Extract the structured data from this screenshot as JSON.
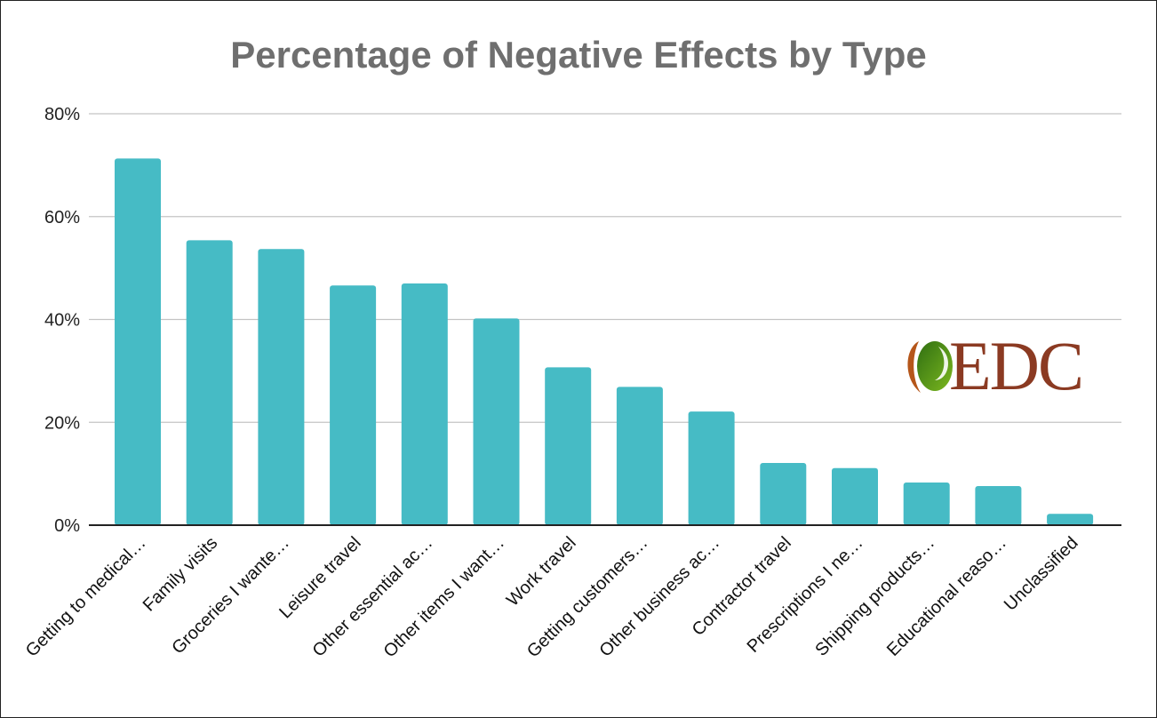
{
  "chart_data": {
    "type": "bar",
    "title": "Percentage of Negative Effects by Type",
    "xlabel": "",
    "ylabel": "",
    "ylim": [
      0,
      80
    ],
    "yticks": [
      "0%",
      "20%",
      "40%",
      "60%",
      "80%"
    ],
    "ytick_values": [
      0,
      20,
      40,
      60,
      80
    ],
    "grid": true,
    "legend": "none",
    "bar_color": "#46bbc5",
    "categories": [
      "Getting to medical…",
      "Family visits",
      "Groceries I wante…",
      "Leisure travel",
      "Other essential ac…",
      "Other items I want…",
      "Work travel",
      "Getting customers…",
      "Other business ac…",
      "Contractor travel",
      "Prescriptions I ne…",
      "Shipping products…",
      "Educational reaso…",
      "Unclassified"
    ],
    "values": [
      71.3,
      55.4,
      53.7,
      46.6,
      47.0,
      40.2,
      30.7,
      26.9,
      22.1,
      12.1,
      11.1,
      8.3,
      7.6,
      2.2
    ]
  },
  "logo": {
    "text": "EDC",
    "text_color": "#8b3a22",
    "leaf_color": "#5a9e1e",
    "crescent_color": "#b5561a"
  }
}
